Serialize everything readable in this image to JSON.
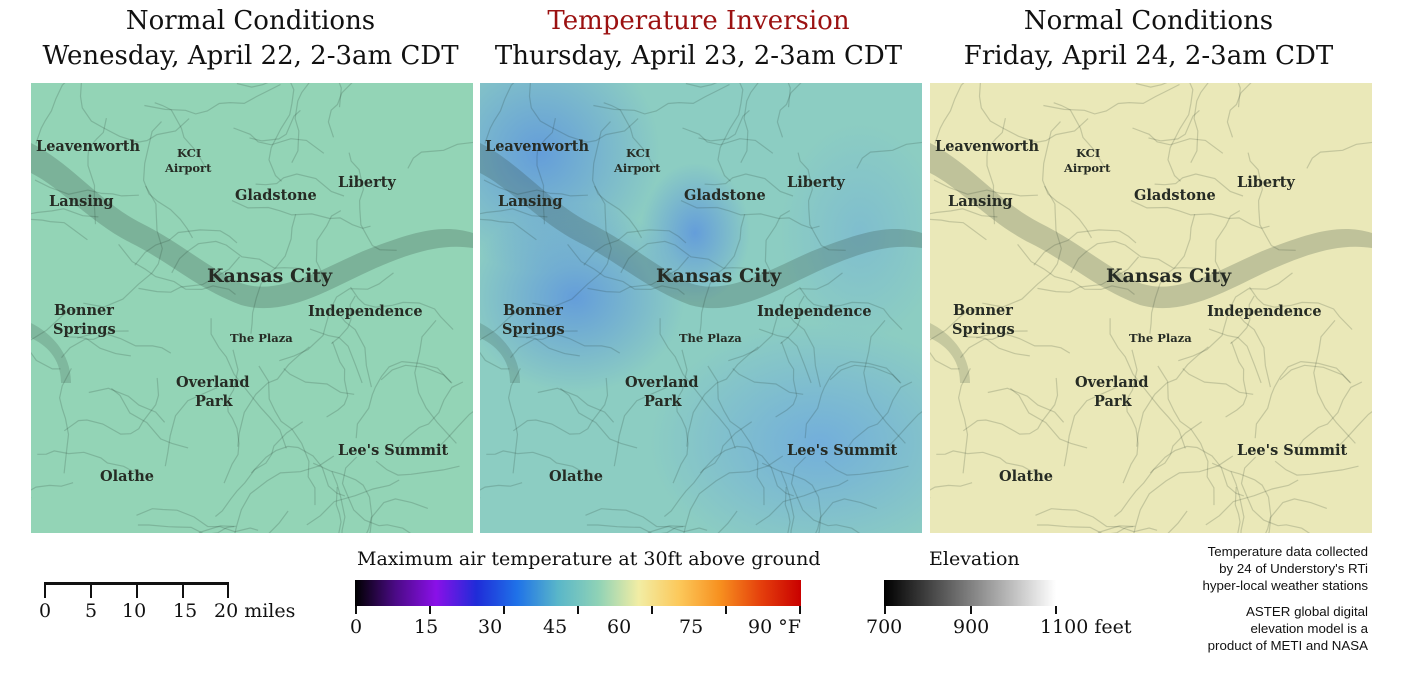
{
  "panels": [
    {
      "title": "Normal Conditions",
      "subtitle": "Wenesday, April 22, 2-3am CDT",
      "title_color": "#111111",
      "tint": "#93d4b6"
    },
    {
      "title": "Temperature Inversion",
      "subtitle": "Thursday, April 23, 2-3am CDT",
      "title_color": "#9b1111",
      "tint": "#86c9c6",
      "cold_tint": "#6aa6de"
    },
    {
      "title": "Normal Conditions",
      "subtitle": "Friday, April 24, 2-3am CDT",
      "title_color": "#111111",
      "tint": "#eae8b8"
    }
  ],
  "places": {
    "leavenworth": "Leavenworth",
    "kci_airport_1": "KCI",
    "kci_airport_2": "Airport",
    "lansing": "Lansing",
    "gladstone": "Gladstone",
    "liberty": "Liberty",
    "kansas_city": "Kansas City",
    "bonner_springs_1": "Bonner",
    "bonner_springs_2": "Springs",
    "independence": "Independence",
    "the_plaza": "The Plaza",
    "overland_park_1": "Overland",
    "overland_park_2": "Park",
    "lees_summit": "Lee's Summit",
    "olathe": "Olathe"
  },
  "scale_bar": {
    "ticks": [
      "0",
      "5",
      "10",
      "15",
      "20 miles"
    ]
  },
  "temperature_legend": {
    "title": "Maximum air temperature at 30ft above ground",
    "ticks": [
      "0",
      "15",
      "30",
      "45",
      "60",
      "75",
      "90 °F"
    ],
    "colors": [
      "#000000",
      "#4b0a86",
      "#8a10e8",
      "#1f2cd8",
      "#1f72e8",
      "#59b6c9",
      "#8fd2b6",
      "#f2eda4",
      "#fcc85a",
      "#f7901f",
      "#e5400c",
      "#c90000"
    ]
  },
  "elevation_legend": {
    "title": "Elevation",
    "ticks": [
      "700",
      "900",
      "1100 feet"
    ]
  },
  "credits": {
    "line1": "Temperature data collected",
    "line2": "by 24 of Understory's RTi",
    "line3": "hyper-local weather stations",
    "line4": "ASTER global digital",
    "line5": "elevation model is a",
    "line6": "product of METI and NASA"
  }
}
